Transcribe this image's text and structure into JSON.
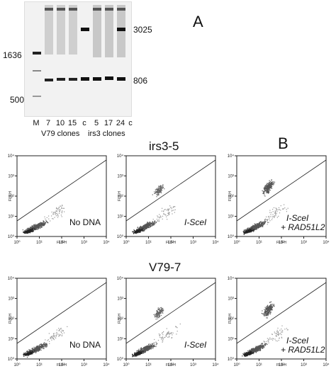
{
  "panel_a": {
    "letter": "A",
    "size_markers": {
      "m1636": "1636",
      "m500": "500"
    },
    "band_labels": {
      "b3025": "3025",
      "b806": "806"
    },
    "lanes": [
      "M",
      "7",
      "10",
      "15",
      "c",
      "5",
      "17",
      "24",
      "c"
    ],
    "group_labels": {
      "v79": "V79 clones",
      "irs3": "irs3 clones"
    }
  },
  "panel_b": {
    "letter": "B",
    "row1": {
      "title": "irs3-5",
      "conditions": [
        {
          "line1": "No DNA",
          "line2": ""
        },
        {
          "line1": "I-SceI",
          "line2": ""
        },
        {
          "line1": "I-SceI",
          "line2": "+ RAD51L2"
        }
      ]
    },
    "row2": {
      "title": "V79-7",
      "conditions": [
        {
          "line1": "No DNA",
          "line2": ""
        },
        {
          "line1": "I-SceI",
          "line2": ""
        },
        {
          "line1": "I-SceI",
          "line2": "+ RAD51L2"
        }
      ]
    },
    "axis": {
      "xlabel": "FL3-H",
      "ylabel": "FL1-H",
      "ticks": [
        "10⁰",
        "10¹",
        "10²",
        "10³",
        "10⁴"
      ]
    }
  }
}
